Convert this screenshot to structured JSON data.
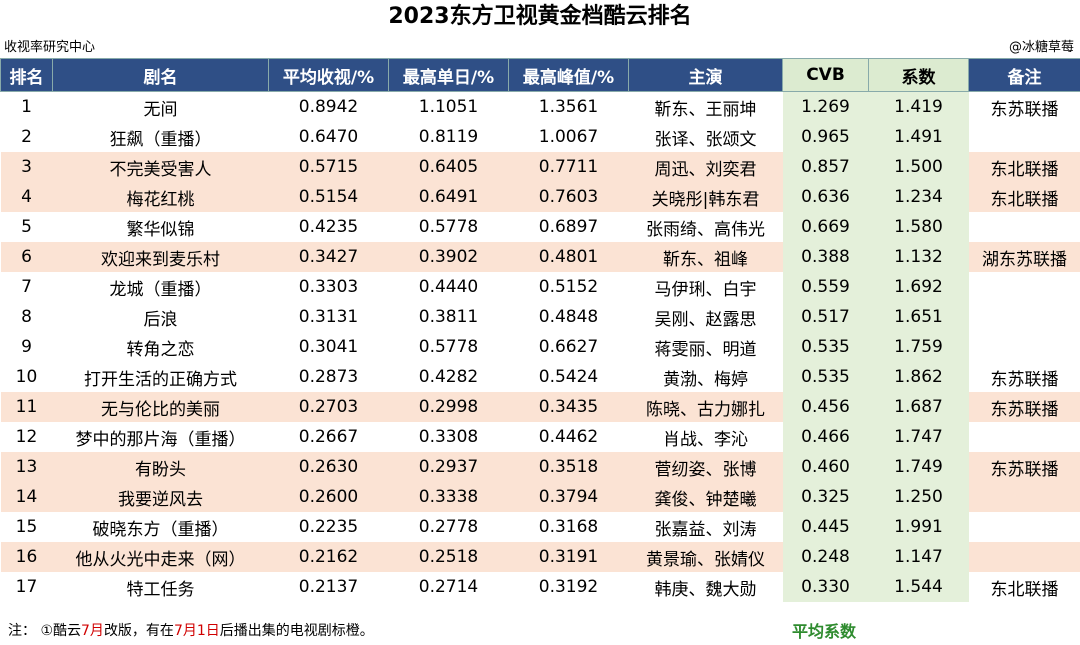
{
  "header": {
    "title": "2023东方卫视黄金档酷云排名",
    "left_note": "收视率研究中心",
    "right_note": "@冰糖草莓"
  },
  "table": {
    "columns": [
      "排名",
      "剧名",
      "平均收视/%",
      "最高单日/%",
      "最高峰值/%",
      "主演",
      "CVB",
      "系数",
      "备注"
    ],
    "rows": [
      {
        "cells": [
          "1",
          "无间",
          "0.8942",
          "1.1051",
          "1.3561",
          "靳东、王丽坤",
          "1.269",
          "1.419",
          "东苏联播"
        ],
        "orange": false
      },
      {
        "cells": [
          "2",
          "狂飙（重播）",
          "0.6470",
          "0.8119",
          "1.0067",
          "张译、张颂文",
          "0.965",
          "1.491",
          ""
        ],
        "orange": false
      },
      {
        "cells": [
          "3",
          "不完美受害人",
          "0.5715",
          "0.6405",
          "0.7711",
          "周迅、刘奕君",
          "0.857",
          "1.500",
          "东北联播"
        ],
        "orange": true
      },
      {
        "cells": [
          "4",
          "梅花红桃",
          "0.5154",
          "0.6491",
          "0.7603",
          "关晓彤|韩东君",
          "0.636",
          "1.234",
          "东北联播"
        ],
        "orange": true
      },
      {
        "cells": [
          "5",
          "繁华似锦",
          "0.4235",
          "0.5778",
          "0.6897",
          "张雨绮、高伟光",
          "0.669",
          "1.580",
          ""
        ],
        "orange": false
      },
      {
        "cells": [
          "6",
          "欢迎来到麦乐村",
          "0.3427",
          "0.3902",
          "0.4801",
          "靳东、祖峰",
          "0.388",
          "1.132",
          "湖东苏联播"
        ],
        "orange": true
      },
      {
        "cells": [
          "7",
          "龙城（重播）",
          "0.3303",
          "0.4440",
          "0.5152",
          "马伊琍、白宇",
          "0.559",
          "1.692",
          ""
        ],
        "orange": false
      },
      {
        "cells": [
          "8",
          "后浪",
          "0.3131",
          "0.3811",
          "0.4848",
          "吴刚、赵露思",
          "0.517",
          "1.651",
          ""
        ],
        "orange": false
      },
      {
        "cells": [
          "9",
          "转角之恋",
          "0.3041",
          "0.5778",
          "0.6627",
          "蒋雯丽、明道",
          "0.535",
          "1.759",
          ""
        ],
        "orange": false
      },
      {
        "cells": [
          "10",
          "打开生活的正确方式",
          "0.2873",
          "0.4282",
          "0.5424",
          "黄渤、梅婷",
          "0.535",
          "1.862",
          "东苏联播"
        ],
        "orange": false
      },
      {
        "cells": [
          "11",
          "无与伦比的美丽",
          "0.2703",
          "0.2998",
          "0.3435",
          "陈晓、古力娜扎",
          "0.456",
          "1.687",
          "东苏联播"
        ],
        "orange": true
      },
      {
        "cells": [
          "12",
          "梦中的那片海（重播）",
          "0.2667",
          "0.3308",
          "0.4462",
          "肖战、李沁",
          "0.466",
          "1.747",
          ""
        ],
        "orange": false
      },
      {
        "cells": [
          "13",
          "有盼头",
          "0.2630",
          "0.2937",
          "0.3518",
          "菅纫姿、张博",
          "0.460",
          "1.749",
          "东苏联播"
        ],
        "orange": true
      },
      {
        "cells": [
          "14",
          "我要逆风去",
          "0.2600",
          "0.3338",
          "0.3794",
          "龚俊、钟楚曦",
          "0.325",
          "1.250",
          ""
        ],
        "orange": true
      },
      {
        "cells": [
          "15",
          "破晓东方（重播）",
          "0.2235",
          "0.2778",
          "0.3168",
          "张嘉益、刘涛",
          "0.445",
          "1.991",
          ""
        ],
        "orange": false
      },
      {
        "cells": [
          "16",
          "他从火光中走来（网）",
          "0.2162",
          "0.2518",
          "0.3191",
          "黄景瑜、张婧仪",
          "0.248",
          "1.147",
          ""
        ],
        "orange": true
      },
      {
        "cells": [
          "17",
          "特工任务",
          "0.2137",
          "0.2714",
          "0.3192",
          "韩庚、魏大勋",
          "0.330",
          "1.544",
          "东北联播"
        ],
        "orange": false
      }
    ]
  },
  "footer": {
    "note_parts": [
      "注：  ①酷云",
      "7月",
      "改版，有在",
      "7月1日",
      "后播出集的电视剧标橙。"
    ],
    "average_label": "平均系数"
  }
}
